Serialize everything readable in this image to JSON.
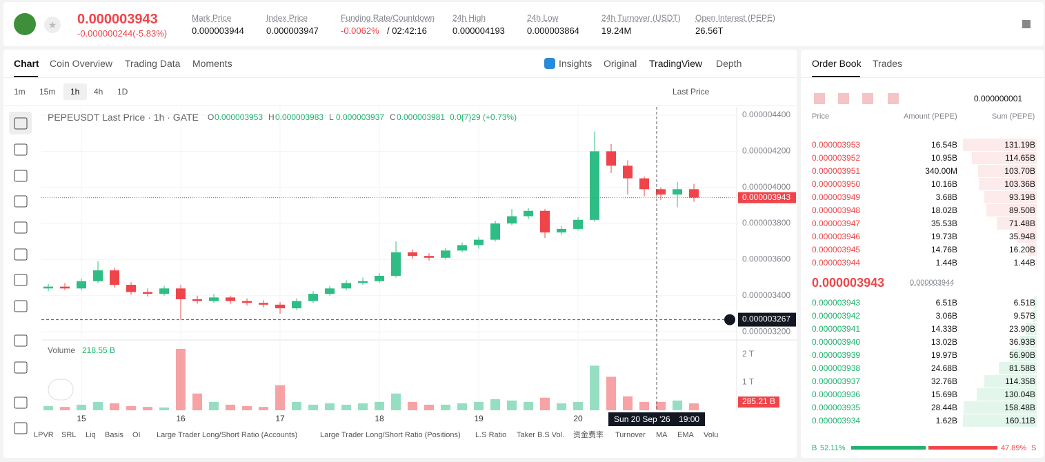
{
  "header": {
    "price": "0.000003943",
    "change": "-0.000000244(-5.83%)",
    "stats": [
      {
        "label": "Mark Price",
        "value": "0.000003944"
      },
      {
        "label": "Index Price",
        "value": "0.000003947"
      },
      {
        "label": "Funding Rate/Countdown",
        "value": "-0.0062%",
        "extra": "/ 02:42:16"
      },
      {
        "label": "24h High",
        "value": "0.000004193"
      },
      {
        "label": "24h Low",
        "value": "0.000003864"
      },
      {
        "label": "24h Turnover (USDT)",
        "value": "19.24M"
      },
      {
        "label": "Open Interest (PEPE)",
        "value": "26.56T"
      }
    ]
  },
  "chart_tabs": [
    "Chart",
    "Coin Overview",
    "Trading Data",
    "Moments"
  ],
  "view_tabs": [
    "Insights",
    "Original",
    "TradingView",
    "Depth"
  ],
  "intervals": [
    "1m",
    "15m",
    "1h",
    "4h",
    "1D"
  ],
  "price_source": "Last Price",
  "legend": {
    "title": "PEPEUSDT Last Price · 1h · GATE",
    "items": [
      {
        "k": "O",
        "v": "0.000003953"
      },
      {
        "k": "H",
        "v": "0.000003983"
      },
      {
        "k": "L",
        "v": "0.000003937"
      },
      {
        "k": "C",
        "v": "0.000003981"
      }
    ],
    "change": "0.0{7}29 (+0.73%)"
  },
  "chart_data": {
    "type": "candlestick",
    "up_color": "#2ebd85",
    "down_color": "#ef454a",
    "x": [
      -8,
      -4,
      0,
      4,
      8,
      12,
      16,
      20,
      24,
      28,
      32,
      36,
      40,
      44,
      48,
      52,
      56,
      60,
      64,
      68,
      72,
      76,
      80,
      84,
      88,
      92,
      96,
      100,
      104,
      108,
      112,
      116,
      120,
      124,
      128,
      132,
      136,
      140,
      144,
      148
    ],
    "ohlc": [
      [
        3.44e-06,
        3.465e-06,
        3.425e-06,
        3.45e-06
      ],
      [
        3.45e-06,
        3.47e-06,
        3.43e-06,
        3.44e-06
      ],
      [
        3.44e-06,
        3.495e-06,
        3.43e-06,
        3.48e-06
      ],
      [
        3.48e-06,
        3.59e-06,
        3.47e-06,
        3.54e-06
      ],
      [
        3.54e-06,
        3.555e-06,
        3.445e-06,
        3.46e-06
      ],
      [
        3.46e-06,
        3.475e-06,
        3.405e-06,
        3.42e-06
      ],
      [
        3.42e-06,
        3.44e-06,
        3.395e-06,
        3.41e-06
      ],
      [
        3.41e-06,
        3.455e-06,
        3.4e-06,
        3.44e-06
      ],
      [
        3.44e-06,
        3.46e-06,
        3.267e-06,
        3.38e-06
      ],
      [
        3.38e-06,
        3.4e-06,
        3.355e-06,
        3.37e-06
      ],
      [
        3.37e-06,
        3.41e-06,
        3.36e-06,
        3.39e-06
      ],
      [
        3.39e-06,
        3.4e-06,
        3.355e-06,
        3.37e-06
      ],
      [
        3.37e-06,
        3.385e-06,
        3.345e-06,
        3.36e-06
      ],
      [
        3.36e-06,
        3.375e-06,
        3.335e-06,
        3.35e-06
      ],
      [
        3.35e-06,
        3.365e-06,
        3.3e-06,
        3.33e-06
      ],
      [
        3.33e-06,
        3.385e-06,
        3.32e-06,
        3.37e-06
      ],
      [
        3.37e-06,
        3.425e-06,
        3.36e-06,
        3.41e-06
      ],
      [
        3.41e-06,
        3.455e-06,
        3.4e-06,
        3.44e-06
      ],
      [
        3.44e-06,
        3.485e-06,
        3.43e-06,
        3.47e-06
      ],
      [
        3.47e-06,
        3.5e-06,
        3.46e-06,
        3.48e-06
      ],
      [
        3.48e-06,
        3.525e-06,
        3.47e-06,
        3.51e-06
      ],
      [
        3.51e-06,
        3.7e-06,
        3.5e-06,
        3.64e-06
      ],
      [
        3.64e-06,
        3.655e-06,
        3.605e-06,
        3.62e-06
      ],
      [
        3.62e-06,
        3.635e-06,
        3.595e-06,
        3.61e-06
      ],
      [
        3.61e-06,
        3.665e-06,
        3.6e-06,
        3.65e-06
      ],
      [
        3.65e-06,
        3.695e-06,
        3.64e-06,
        3.68e-06
      ],
      [
        3.68e-06,
        3.725e-06,
        3.66e-06,
        3.71e-06
      ],
      [
        3.71e-06,
        3.815e-06,
        3.7e-06,
        3.8e-06
      ],
      [
        3.8e-06,
        3.88e-06,
        3.79e-06,
        3.84e-06
      ],
      [
        3.84e-06,
        3.885e-06,
        3.825e-06,
        3.87e-06
      ],
      [
        3.87e-06,
        3.88e-06,
        3.72e-06,
        3.75e-06
      ],
      [
        3.75e-06,
        3.785e-06,
        3.735e-06,
        3.77e-06
      ],
      [
        3.77e-06,
        3.835e-06,
        3.76e-06,
        3.82e-06
      ],
      [
        3.82e-06,
        4.31e-06,
        3.81e-06,
        4.2e-06
      ],
      [
        4.2e-06,
        4.24e-06,
        4.08e-06,
        4.12e-06
      ],
      [
        4.12e-06,
        4.15e-06,
        3.96e-06,
        4.05e-06
      ],
      [
        4.05e-06,
        4.06e-06,
        3.95e-06,
        3.99e-06
      ],
      [
        3.99e-06,
        4e-06,
        3.93e-06,
        3.96e-06
      ],
      [
        3.96e-06,
        4.03e-06,
        3.89e-06,
        3.99e-06
      ],
      [
        3.99e-06,
        4.02e-06,
        3.92e-06,
        3.943e-06
      ]
    ],
    "xlim": [
      -9.67,
      158.33
    ],
    "xticks": [
      {
        "value": 0,
        "label": "15"
      },
      {
        "value": 24,
        "label": "16"
      },
      {
        "value": 48,
        "label": "17"
      },
      {
        "value": 72,
        "label": "18"
      },
      {
        "value": 96,
        "label": "19"
      },
      {
        "value": 120,
        "label": "20"
      }
    ],
    "ylim": [
      3.166e-06,
      4.446e-06
    ],
    "yticks": [
      {
        "value": 3.2e-06,
        "label": "0.000003200"
      },
      {
        "value": 3.4e-06,
        "label": "0.000003400"
      },
      {
        "value": 3.6e-06,
        "label": "0.000003600"
      },
      {
        "value": 3.8e-06,
        "label": "0.000003800"
      },
      {
        "value": 4e-06,
        "label": "0.000004000"
      },
      {
        "value": 4.2e-06,
        "label": "0.000004200"
      },
      {
        "value": 4.4e-06,
        "label": "0.000004400"
      }
    ],
    "last_price": {
      "value": 3.943e-06,
      "label": "0.000003943"
    },
    "crosshair": {
      "x": 139,
      "y": 3.267e-06,
      "price_label": "0.000003267",
      "time_label": "Sun 20 Sep '26",
      "hour_label": "19:00"
    },
    "volume": {
      "title": "Volume",
      "value_label": "218.55 B",
      "last_label": "285.21 B",
      "values": [
        0.15,
        0.12,
        0.2,
        0.3,
        0.25,
        0.15,
        0.12,
        0.1,
        2.2,
        0.6,
        0.3,
        0.2,
        0.15,
        0.12,
        0.9,
        0.3,
        0.2,
        0.25,
        0.2,
        0.25,
        0.3,
        0.6,
        0.3,
        0.2,
        0.2,
        0.25,
        0.3,
        0.4,
        0.35,
        0.3,
        0.45,
        0.25,
        0.3,
        1.6,
        1.2,
        0.5,
        0.3,
        0.3,
        0.35,
        0.25
      ],
      "ylim": [
        0,
        2.42
      ],
      "yticks": [
        {
          "value": 1,
          "label": "1 T"
        },
        {
          "value": 2,
          "label": "2 T"
        }
      ]
    }
  },
  "indicators": [
    "LPVR",
    "SRL",
    "Liq",
    "Basis",
    "OI",
    "Large Trader Long/Short Ratio (Accounts)",
    "Large Trader Long/Short Ratio (Positions)",
    "L.S Ratio",
    "Taker B.S Vol.",
    "资金费率",
    "Turnover",
    "MA",
    "EMA",
    "Volu"
  ],
  "order_book": {
    "tabs": [
      "Order Book",
      "Trades"
    ],
    "precision": "0.000000001",
    "columns": [
      "Price",
      "Amount (PEPE)",
      "Sum (PEPE)"
    ],
    "asks": [
      [
        "0.000003953",
        "16.54B",
        "131.19B"
      ],
      [
        "0.000003952",
        "10.95B",
        "114.65B"
      ],
      [
        "0.000003951",
        "340.00M",
        "103.70B"
      ],
      [
        "0.000003950",
        "10.16B",
        "103.36B"
      ],
      [
        "0.000003949",
        "3.68B",
        "93.19B"
      ],
      [
        "0.000003948",
        "18.02B",
        "89.50B"
      ],
      [
        "0.000003947",
        "35.53B",
        "71.48B"
      ],
      [
        "0.000003946",
        "19.73B",
        "35.94B"
      ],
      [
        "0.000003945",
        "14.76B",
        "16.20B"
      ],
      [
        "0.000003944",
        "1.44B",
        "1.44B"
      ]
    ],
    "mid_price": "0.000003943",
    "mark_price": "0.000003944",
    "bids": [
      [
        "0.000003943",
        "6.51B",
        "6.51B"
      ],
      [
        "0.000003942",
        "3.06B",
        "9.57B"
      ],
      [
        "0.000003941",
        "14.33B",
        "23.90B"
      ],
      [
        "0.000003940",
        "13.02B",
        "36.93B"
      ],
      [
        "0.000003939",
        "19.97B",
        "56.90B"
      ],
      [
        "0.000003938",
        "24.68B",
        "81.58B"
      ],
      [
        "0.000003937",
        "32.76B",
        "114.35B"
      ],
      [
        "0.000003936",
        "15.69B",
        "130.04B"
      ],
      [
        "0.000003935",
        "28.44B",
        "158.48B"
      ],
      [
        "0.000003934",
        "1.62B",
        "160.11B"
      ]
    ],
    "buy": {
      "letter": "B",
      "pct": 52.11,
      "label": "52.11%"
    },
    "sell": {
      "letter": "S",
      "pct": 47.89,
      "label": "47.89%"
    }
  }
}
